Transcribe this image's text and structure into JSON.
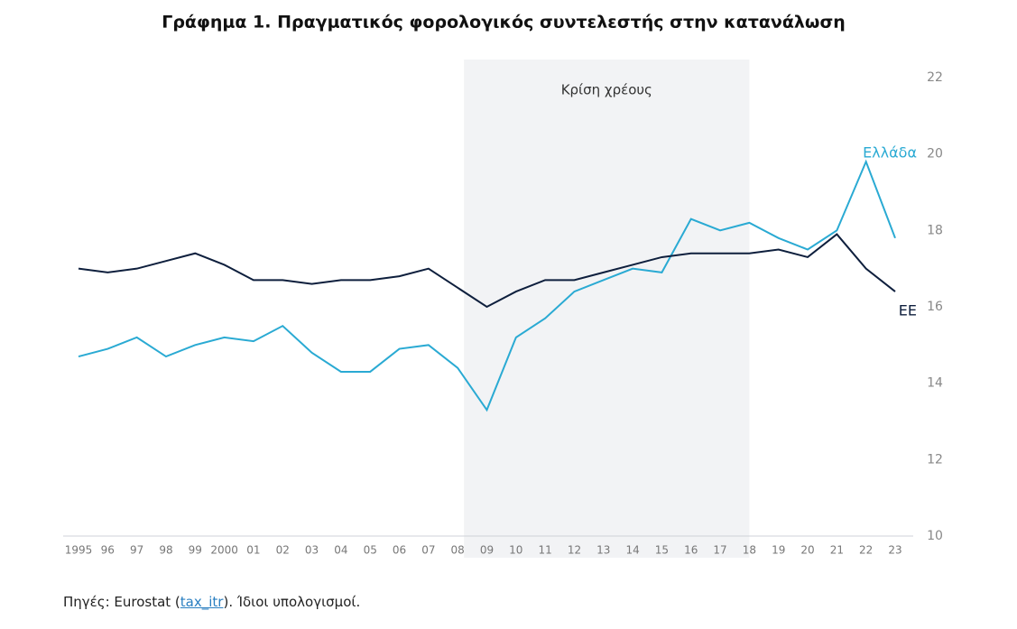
{
  "chart_data": {
    "type": "line",
    "title": "Γράφημα 1. Πραγματικός φορολογικός συντελεστής στην κατανάλωση",
    "categories": [
      "1995",
      "96",
      "97",
      "98",
      "99",
      "2000",
      "01",
      "02",
      "03",
      "04",
      "05",
      "06",
      "07",
      "08",
      "09",
      "10",
      "11",
      "12",
      "13",
      "14",
      "15",
      "16",
      "17",
      "18",
      "19",
      "20",
      "21",
      "22",
      "23"
    ],
    "series": [
      {
        "name": "Ελλάδα",
        "color": "#2aaad3",
        "values": [
          14.7,
          14.9,
          15.2,
          14.7,
          15.0,
          15.2,
          15.1,
          15.5,
          14.8,
          14.3,
          14.3,
          14.9,
          15.0,
          14.4,
          13.3,
          15.2,
          15.7,
          16.4,
          16.7,
          17.0,
          16.9,
          18.3,
          18.0,
          18.2,
          17.8,
          17.5,
          18.0,
          19.8,
          17.8
        ]
      },
      {
        "name": "ΕΕ",
        "color": "#0e1f3d",
        "values": [
          17.0,
          16.9,
          17.0,
          17.2,
          17.4,
          17.1,
          16.7,
          16.7,
          16.6,
          16.7,
          16.7,
          16.8,
          17.0,
          16.5,
          16.0,
          16.4,
          16.7,
          16.7,
          16.9,
          17.1,
          17.3,
          17.4,
          17.4,
          17.4,
          17.5,
          17.3,
          17.9,
          17.0,
          16.4
        ]
      }
    ],
    "ylim": [
      10,
      22
    ],
    "yticks": [
      10,
      12,
      14,
      16,
      18,
      20,
      22
    ],
    "shaded_range": {
      "label": "Κρίση χρέους",
      "start": "08",
      "end": "18",
      "color": "#f2f3f5"
    },
    "source": {
      "prefix": "Πηγές: Eurostat (",
      "link": "tax_itr",
      "suffix": ").  Ίδιοι υπολογισμοί."
    }
  }
}
